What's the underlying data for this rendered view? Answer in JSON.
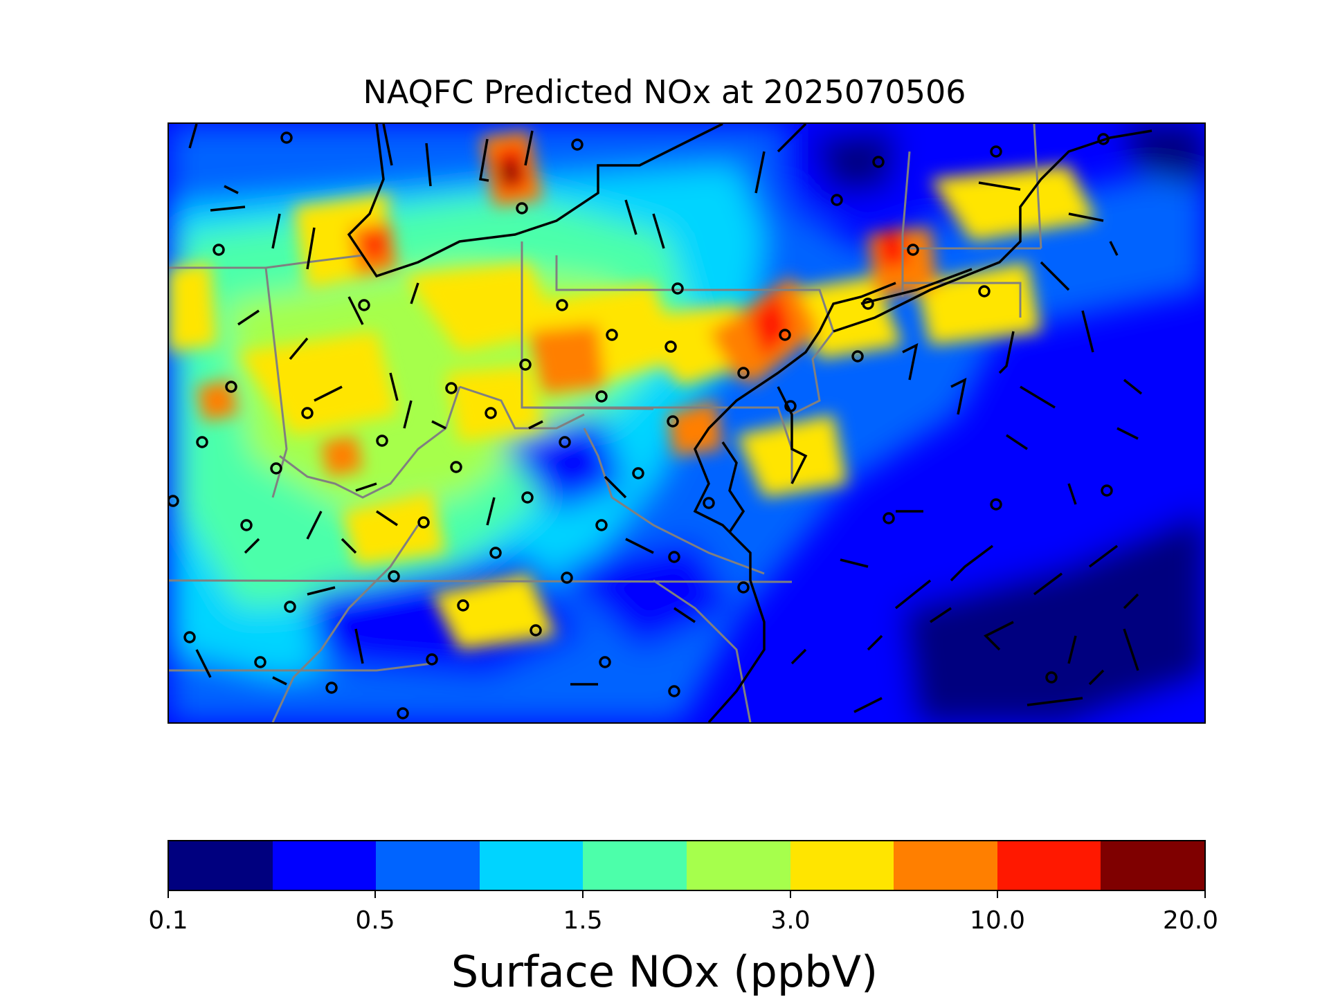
{
  "map": {
    "title": "NAQFC Predicted NOx at 2025070506",
    "colorbar": {
      "label": "Surface NOx (ppbV)",
      "tick_labels": [
        "0.1",
        "0.5",
        "1.5",
        "3.0",
        "10.0",
        "20.0"
      ],
      "colors": [
        "#00007f",
        "#0000ff",
        "#0064ff",
        "#00d4ff",
        "#4cffaa",
        "#a6ff4c",
        "#ffe500",
        "#ff7f00",
        "#ff1800",
        "#7f0000"
      ]
    },
    "legend_elements": {
      "wind_barbs": "black barbs (wind speed/direction)",
      "calm_markers": "black circles",
      "state_boundaries": "gray lines",
      "coastlines": "black lines"
    }
  }
}
